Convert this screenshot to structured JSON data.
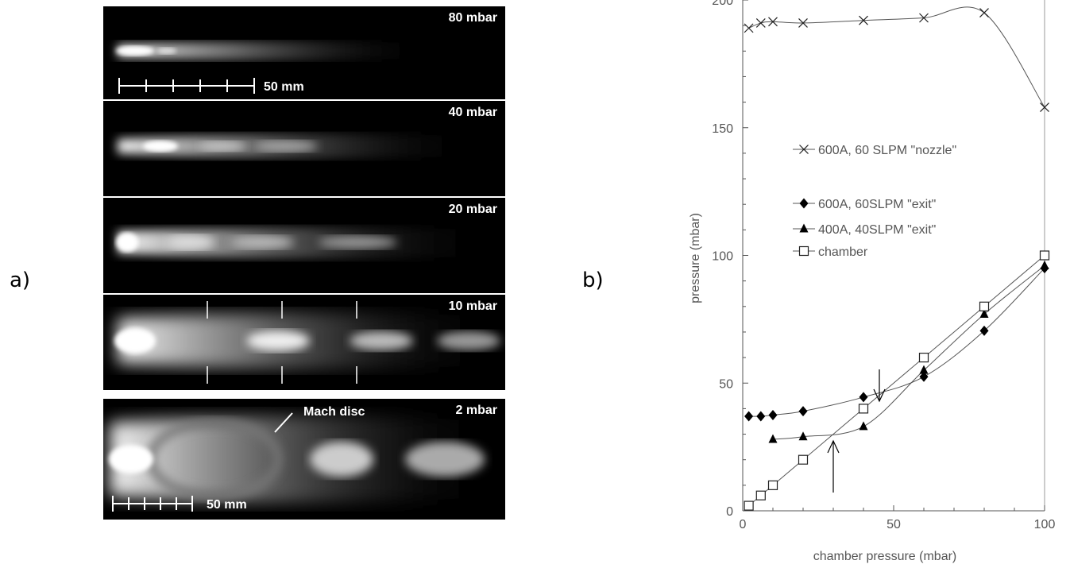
{
  "panel_a": {
    "label": "a)",
    "frames": [
      {
        "pressure": "80 mbar"
      },
      {
        "pressure": "40 mbar"
      },
      {
        "pressure": "20 mbar"
      },
      {
        "pressure": "10 mbar"
      },
      {
        "pressure": "2 mbar"
      }
    ],
    "scale_label": "50 mm",
    "scale_label_2": "50 mm",
    "mach_disc_label": "Mach disc"
  },
  "panel_b": {
    "label": "b)"
  },
  "chart_data": {
    "type": "line",
    "xlabel": "chamber pressure (mbar)",
    "ylabel": "pressure (mbar)",
    "xlim": [
      0,
      100
    ],
    "ylim": [
      0,
      200
    ],
    "xticks": [
      0,
      50,
      100
    ],
    "yticks": [
      0,
      50,
      100,
      150,
      200
    ],
    "grid": false,
    "legend_position": "center-left",
    "series": [
      {
        "name": "600A, 60 SLPM \"nozzle\"",
        "marker": "x",
        "x": [
          2,
          6,
          10,
          20,
          40,
          60,
          80,
          100
        ],
        "y": [
          189,
          191,
          191.5,
          191,
          192,
          193,
          195,
          158
        ]
      },
      {
        "name": "600A, 60SLPM \"exit\"",
        "marker": "diamond",
        "x": [
          2,
          6,
          10,
          20,
          40,
          60,
          80,
          100
        ],
        "y": [
          37,
          37,
          37.5,
          39,
          44.5,
          52.5,
          70.5,
          95
        ]
      },
      {
        "name": "400A, 40SLPM \"exit\"",
        "marker": "triangle",
        "x": [
          10,
          20,
          40,
          60,
          80,
          100
        ],
        "y": [
          28,
          29,
          33,
          55,
          77,
          96
        ]
      },
      {
        "name": "chamber",
        "marker": "square",
        "x": [
          2,
          6,
          10,
          20,
          40,
          60,
          80,
          100
        ],
        "y": [
          2,
          6,
          10,
          20,
          40,
          60,
          80,
          100
        ]
      }
    ]
  }
}
